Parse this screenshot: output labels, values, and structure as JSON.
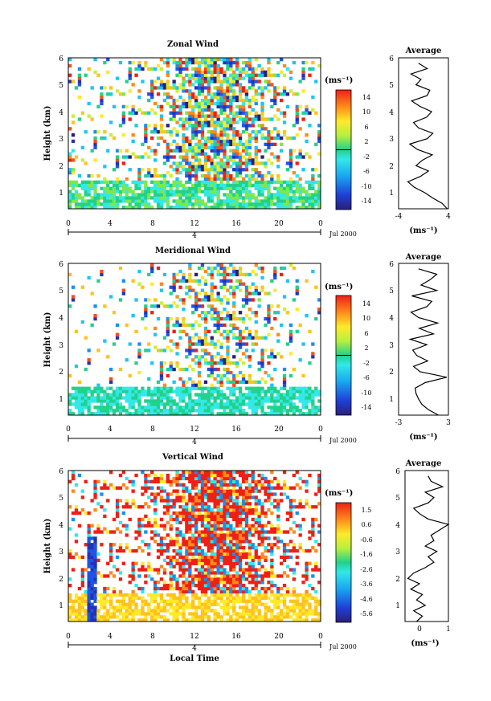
{
  "figure": {
    "date_label": "Jul 2000",
    "day_label": "4",
    "xlabel_bottom": "Local Time",
    "avg_title": "Average",
    "colorbar_unit": "(ms⁻¹)",
    "avg_xlabel": "(ms⁻¹)"
  },
  "chart_data": [
    {
      "type": "heatmap",
      "title": "Zonal Wind",
      "ylabel": "Height (km)",
      "x_ticks": [
        "0",
        "4",
        "8",
        "12",
        "16",
        "20",
        "0"
      ],
      "xlim": [
        0,
        24
      ],
      "y_ticks": [
        "1",
        "2",
        "3",
        "4",
        "5",
        "6"
      ],
      "ylim": [
        0.4,
        6
      ],
      "colorbar": {
        "ticks": [
          "14",
          "10",
          "6",
          "2",
          "-2",
          "-6",
          "-10",
          "-14"
        ],
        "range": [
          -16,
          16
        ]
      },
      "average_profile": {
        "x_ticks": [
          "-4",
          "4"
        ],
        "xlim": [
          -4,
          4
        ],
        "height": [
          0.4,
          0.6,
          0.8,
          1.0,
          1.2,
          1.4,
          1.6,
          1.8,
          2.0,
          2.2,
          2.4,
          2.6,
          2.8,
          3.0,
          3.2,
          3.4,
          3.6,
          3.8,
          4.0,
          4.2,
          4.4,
          4.6,
          4.8,
          5.0,
          5.2,
          5.4,
          5.6,
          5.8
        ],
        "value": [
          3.8,
          3.0,
          1.5,
          0.2,
          -1.5,
          -2.5,
          -0.5,
          0.8,
          -1.2,
          -0.2,
          1.4,
          -1.0,
          -2.2,
          0.6,
          1.5,
          -0.8,
          -1.6,
          0.5,
          1.3,
          -0.6,
          -1.9,
          0.6,
          1.0,
          -1.2,
          -0.4,
          -2.0,
          0.6,
          -0.8
        ]
      }
    },
    {
      "type": "heatmap",
      "title": "Meridional Wind",
      "ylabel": "Height (km)",
      "x_ticks": [
        "0",
        "4",
        "8",
        "12",
        "16",
        "20",
        "0"
      ],
      "xlim": [
        0,
        24
      ],
      "y_ticks": [
        "1",
        "2",
        "3",
        "4",
        "5",
        "6"
      ],
      "ylim": [
        0.4,
        6
      ],
      "colorbar": {
        "ticks": [
          "14",
          "10",
          "6",
          "2",
          "-2",
          "-6",
          "-10",
          "-14"
        ],
        "range": [
          -16,
          16
        ]
      },
      "average_profile": {
        "x_ticks": [
          "-3",
          "3"
        ],
        "xlim": [
          -3,
          3
        ],
        "height": [
          0.4,
          0.6,
          0.8,
          1.0,
          1.2,
          1.4,
          1.6,
          1.8,
          2.0,
          2.2,
          2.4,
          2.6,
          2.8,
          3.0,
          3.2,
          3.4,
          3.6,
          3.8,
          4.0,
          4.2,
          4.4,
          4.6,
          4.8,
          5.0,
          5.2,
          5.4,
          5.6,
          5.8
        ],
        "value": [
          1.8,
          0.6,
          -0.2,
          -0.6,
          -0.9,
          -1.0,
          0.2,
          2.8,
          -0.4,
          -1.2,
          0.5,
          -0.8,
          -1.3,
          0.4,
          -1.6,
          1.2,
          -0.5,
          1.7,
          -0.6,
          -1.5,
          0.4,
          1.0,
          -1.4,
          1.6,
          -0.3,
          0.8,
          1.6,
          -0.6
        ]
      }
    },
    {
      "type": "heatmap",
      "title": "Vertical Wind",
      "ylabel": "Height (km)",
      "x_ticks": [
        "0",
        "4",
        "8",
        "12",
        "16",
        "20",
        "0"
      ],
      "xlim": [
        0,
        24
      ],
      "y_ticks": [
        "1",
        "2",
        "3",
        "4",
        "5",
        "6"
      ],
      "ylim": [
        0.4,
        6
      ],
      "colorbar": {
        "ticks": [
          "1.5",
          "0.6",
          "-0.6",
          "-1.6",
          "-2.6",
          "-3.6",
          "-4.6",
          "-5.6"
        ],
        "range": [
          -6.1,
          2.0
        ]
      },
      "average_profile": {
        "x_ticks": [
          "0",
          "1"
        ],
        "xlim": [
          -0.5,
          1
        ],
        "height": [
          0.4,
          0.6,
          0.8,
          1.0,
          1.2,
          1.4,
          1.6,
          1.8,
          2.0,
          2.2,
          2.4,
          2.6,
          2.8,
          3.0,
          3.2,
          3.4,
          3.6,
          3.8,
          4.0,
          4.2,
          4.4,
          4.6,
          4.8,
          5.0,
          5.2,
          5.4,
          5.6,
          5.8
        ],
        "value": [
          -0.1,
          0.1,
          -0.2,
          0.2,
          -0.1,
          0.1,
          -0.3,
          0.0,
          -0.4,
          -0.2,
          0.2,
          0.5,
          0.3,
          0.6,
          0.2,
          0.5,
          0.4,
          0.7,
          1.0,
          0.3,
          0.0,
          -0.2,
          0.3,
          0.5,
          0.2,
          0.8,
          0.4,
          0.3
        ]
      }
    }
  ]
}
